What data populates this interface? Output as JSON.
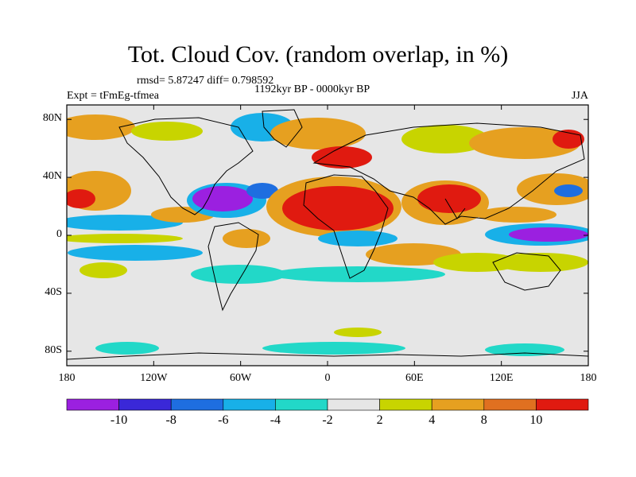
{
  "title": "Tot. Cloud Cov. (random overlap, in %)",
  "stats_line": "rmsd= 5.87247 diff= 0.798592",
  "expt_label": "Expt = tFmEg-tfmea",
  "period_label": "1192kyr BP - 0000kyr BP",
  "season_label": "JJA",
  "lat_ticks": [
    "80N",
    "40N",
    "0",
    "40S",
    "80S"
  ],
  "lat_values": [
    80,
    40,
    0,
    -40,
    -80
  ],
  "lon_ticks": [
    "180",
    "120W",
    "60W",
    "0",
    "60E",
    "120E",
    "180"
  ],
  "lon_values": [
    -180,
    -120,
    -60,
    0,
    60,
    120,
    180
  ],
  "colorbar": {
    "labels": [
      "-10",
      "-8",
      "-6",
      "-4",
      "-2",
      "2",
      "4",
      "8",
      "10"
    ],
    "colors": [
      "#9b20e0",
      "#3a28d8",
      "#1e6ee0",
      "#18b0e8",
      "#22d8c8",
      "#e6e6e6",
      "#c8d400",
      "#e6a020",
      "#e07020",
      "#e01a10"
    ]
  },
  "map_colors": {
    "ocean_bg": "#e6e6e6",
    "coastline": "#000000"
  }
}
